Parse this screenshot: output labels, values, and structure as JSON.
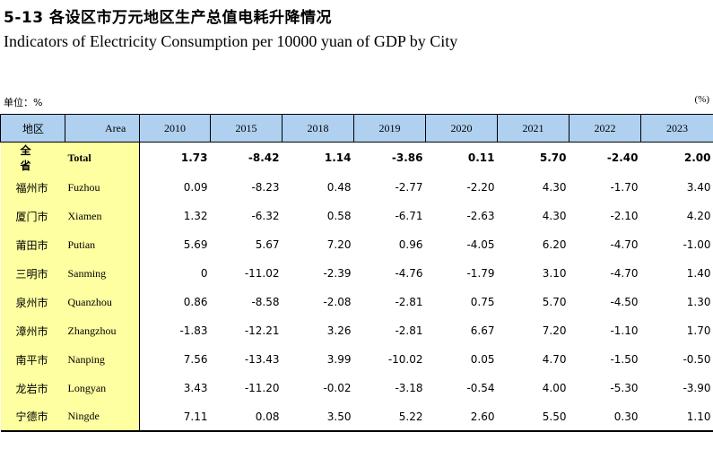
{
  "title_cn": "5-13 各设区市万元地区生产总值电耗升降情况",
  "title_en": "Indicators of Electricity Consumption per 10000 yuan of GDP by City",
  "unit_left": "单位：%",
  "unit_right": "(%)",
  "header": {
    "area_cn": "地区",
    "area_en": "Area",
    "years": [
      "2010",
      "2015",
      "2018",
      "2019",
      "2020",
      "2021",
      "2022",
      "2023"
    ]
  },
  "rows": [
    {
      "cn": "全 省",
      "en": "Total",
      "values": [
        "1.73",
        "-8.42",
        "1.14",
        "-3.86",
        "0.11",
        "5.70",
        "-2.40",
        "2.00"
      ]
    },
    {
      "cn": "福州市",
      "en": "Fuzhou",
      "values": [
        "0.09",
        "-8.23",
        "0.48",
        "-2.77",
        "-2.20",
        "4.30",
        "-1.70",
        "3.40"
      ]
    },
    {
      "cn": "厦门市",
      "en": "Xiamen",
      "values": [
        "1.32",
        "-6.32",
        "0.58",
        "-6.71",
        "-2.63",
        "4.30",
        "-2.10",
        "4.20"
      ]
    },
    {
      "cn": "莆田市",
      "en": "Putian",
      "values": [
        "5.69",
        "5.67",
        "7.20",
        "0.96",
        "-4.05",
        "6.20",
        "-4.70",
        "-1.00"
      ]
    },
    {
      "cn": "三明市",
      "en": "Sanming",
      "values": [
        "0",
        "-11.02",
        "-2.39",
        "-4.76",
        "-1.79",
        "3.10",
        "-4.70",
        "1.40"
      ]
    },
    {
      "cn": "泉州市",
      "en": "Quanzhou",
      "values": [
        "0.86",
        "-8.58",
        "-2.08",
        "-2.81",
        "0.75",
        "5.70",
        "-4.50",
        "1.30"
      ]
    },
    {
      "cn": "漳州市",
      "en": "Zhangzhou",
      "values": [
        "-1.83",
        "-12.21",
        "3.26",
        "-2.81",
        "6.67",
        "7.20",
        "-1.10",
        "1.70"
      ]
    },
    {
      "cn": "南平市",
      "en": "Nanping",
      "values": [
        "7.56",
        "-13.43",
        "3.99",
        "-10.02",
        "0.05",
        "4.70",
        "-1.50",
        "-0.50"
      ]
    },
    {
      "cn": "龙岩市",
      "en": "Longyan",
      "values": [
        "3.43",
        "-11.20",
        "-0.02",
        "-3.18",
        "-0.54",
        "4.00",
        "-5.30",
        "-3.90"
      ]
    },
    {
      "cn": "宁德市",
      "en": "Ningde",
      "values": [
        "7.11",
        "0.08",
        "3.50",
        "5.22",
        "2.60",
        "5.50",
        "0.30",
        "1.10"
      ]
    }
  ]
}
